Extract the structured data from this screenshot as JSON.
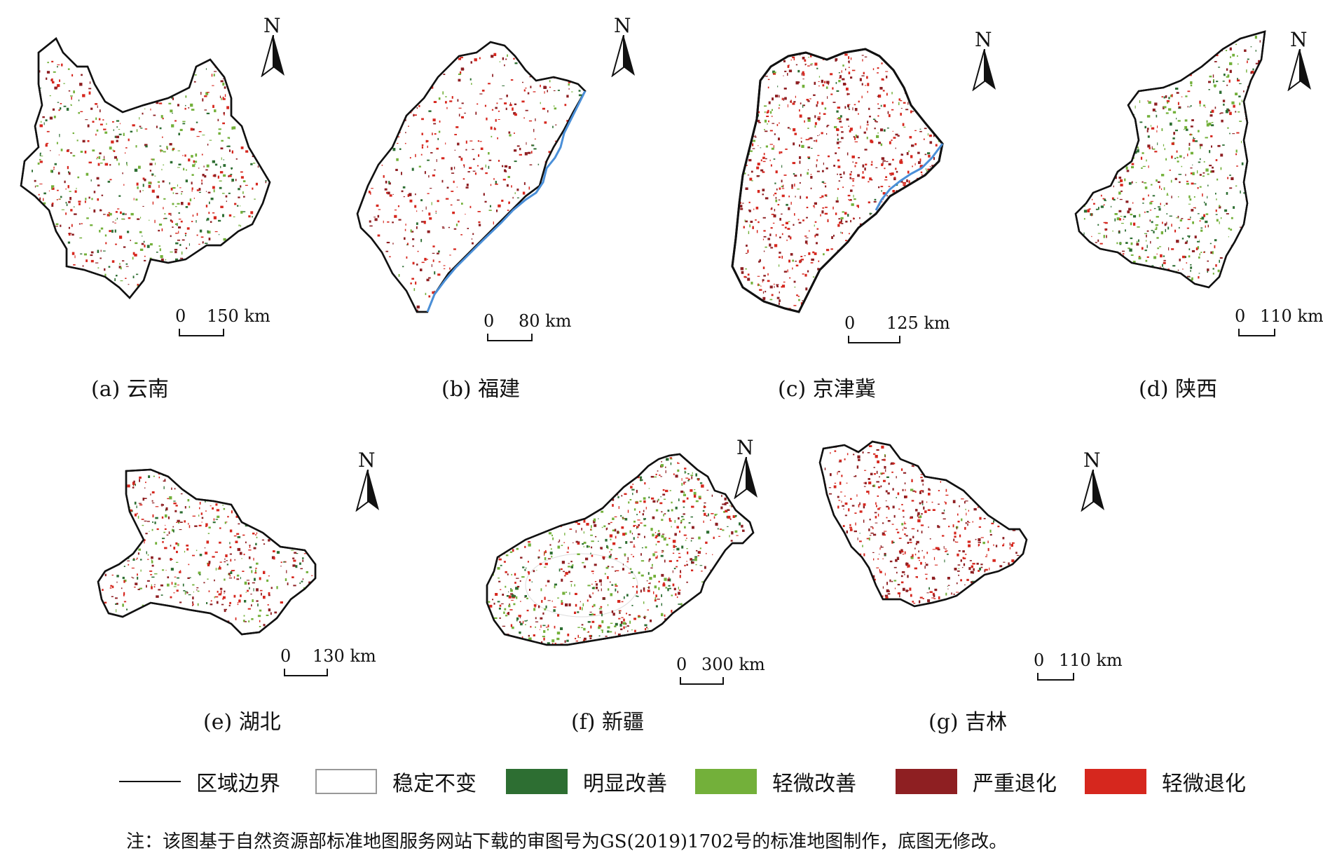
{
  "legend": [
    {
      "label": "区域边界",
      "kind": "line",
      "color": "#111111"
    },
    {
      "label": "稳定不变",
      "kind": "box",
      "color": "#ffffff"
    },
    {
      "label": "明显改善",
      "kind": "box",
      "color": "#2d6e32"
    },
    {
      "label": "轻微改善",
      "kind": "box",
      "color": "#73b03a"
    },
    {
      "label": "严重退化",
      "kind": "box",
      "color": "#8e1f22"
    },
    {
      "label": "轻微退化",
      "kind": "box",
      "color": "#d6271e"
    }
  ],
  "panels": [
    {
      "caption": "(a) 云南",
      "scale_zero": "0",
      "scale_dist": "150 km",
      "north": "N"
    },
    {
      "caption": "(b) 福建",
      "scale_zero": "0",
      "scale_dist": "80 km",
      "north": "N"
    },
    {
      "caption": "(c) 京津冀",
      "scale_zero": "0",
      "scale_dist": "125 km",
      "north": "N"
    },
    {
      "caption": "(d) 陕西",
      "scale_zero": "0",
      "scale_dist": "110 km",
      "north": "N"
    },
    {
      "caption": "(e) 湖北",
      "scale_zero": "0",
      "scale_dist": "130 km",
      "north": "N"
    },
    {
      "caption": "(f) 新疆",
      "scale_zero": "0",
      "scale_dist": "300 km",
      "north": "N"
    },
    {
      "caption": "(g) 吉林",
      "scale_zero": "0",
      "scale_dist": "110 km",
      "north": "N"
    }
  ],
  "note": "注：该图基于自然资源部标准地图服务网站下载的审图号为GS(2019)1702号的标准地图制作，底图无修改。",
  "colors": {
    "boundary": "#111111",
    "coast": "#4a8fd8"
  }
}
